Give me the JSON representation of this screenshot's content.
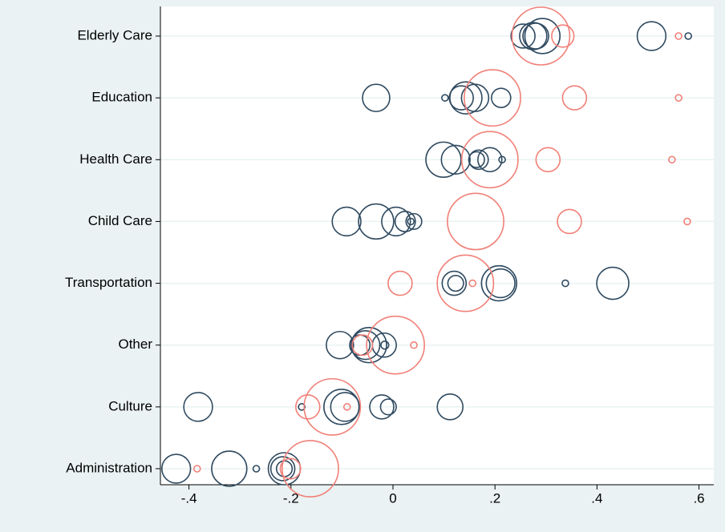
{
  "chart_data": {
    "type": "scatter",
    "categories": [
      "Elderly Care",
      "Education",
      "Health Care",
      "Child Care",
      "Transportation",
      "Other",
      "Culture",
      "Administration"
    ],
    "xlim": [
      -0.456,
      0.629
    ],
    "xticks": [
      {
        "value": -0.4,
        "label": "-.4"
      },
      {
        "value": -0.2,
        "label": "-.2"
      },
      0,
      {
        "value": 0.2,
        "label": ".2"
      },
      {
        "value": 0.4,
        "label": ".4"
      },
      {
        "value": 0.6,
        "label": ".6"
      }
    ],
    "grid": true,
    "series": [
      {
        "color": "#2f4a60",
        "values": [
          [
            0.255,
            0.275,
            0.293,
            0.28,
            0.507,
            0.579
          ],
          [
            -0.033,
            0.102,
            0.143,
            0.161,
            0.212,
            0.134
          ],
          [
            0.099,
            0.123,
            0.164,
            0.168,
            0.19,
            0.214
          ],
          [
            -0.091,
            -0.033,
            0.006,
            0.024,
            0.041,
            0.035
          ],
          [
            0.12,
            0.123,
            0.208,
            0.211,
            0.338,
            0.431
          ],
          [
            -0.104,
            -0.065,
            -0.054,
            -0.047,
            -0.017,
            -0.016
          ],
          [
            -0.382,
            -0.179,
            -0.101,
            -0.094,
            -0.022,
            -0.009,
            0.112
          ],
          [
            -0.425,
            -0.321,
            -0.268,
            -0.216,
            -0.213,
            -0.213
          ]
        ],
        "sizes": [
          [
            14,
            18,
            30,
            16,
            20,
            1
          ],
          [
            18,
            1,
            25,
            18,
            9,
            14
          ],
          [
            30,
            20,
            6,
            9,
            14,
            1
          ],
          [
            20,
            30,
            20,
            10,
            6,
            1
          ],
          [
            14,
            6,
            30,
            20,
            1,
            25
          ],
          [
            18,
            10,
            20,
            30,
            14,
            1.5
          ],
          [
            20,
            1,
            30,
            20,
            14,
            6,
            16
          ],
          [
            20,
            30,
            1,
            14,
            25,
            6
          ]
        ]
      },
      {
        "color": "#f08078",
        "values": [
          [
            0.29,
            0.333,
            0.56
          ],
          [
            0.195,
            0.356,
            0.56
          ],
          [
            0.19,
            0.304,
            0.547
          ],
          [
            0.162,
            0.346,
            0.577
          ],
          [
            0.014,
            0.142,
            0.156
          ],
          [
            0.005,
            0.041,
            -0.06
          ],
          [
            -0.167,
            -0.119,
            -0.09
          ],
          [
            -0.384,
            -0.162,
            -0.201
          ]
        ],
        "sizes": [
          [
            81,
            12,
            1
          ],
          [
            77,
            14,
            1
          ],
          [
            77,
            14,
            1
          ],
          [
            77,
            14,
            1
          ],
          [
            14,
            77,
            1
          ],
          [
            81,
            1,
            10
          ],
          [
            14,
            77,
            1
          ],
          [
            1,
            77,
            10
          ]
        ]
      }
    ]
  }
}
